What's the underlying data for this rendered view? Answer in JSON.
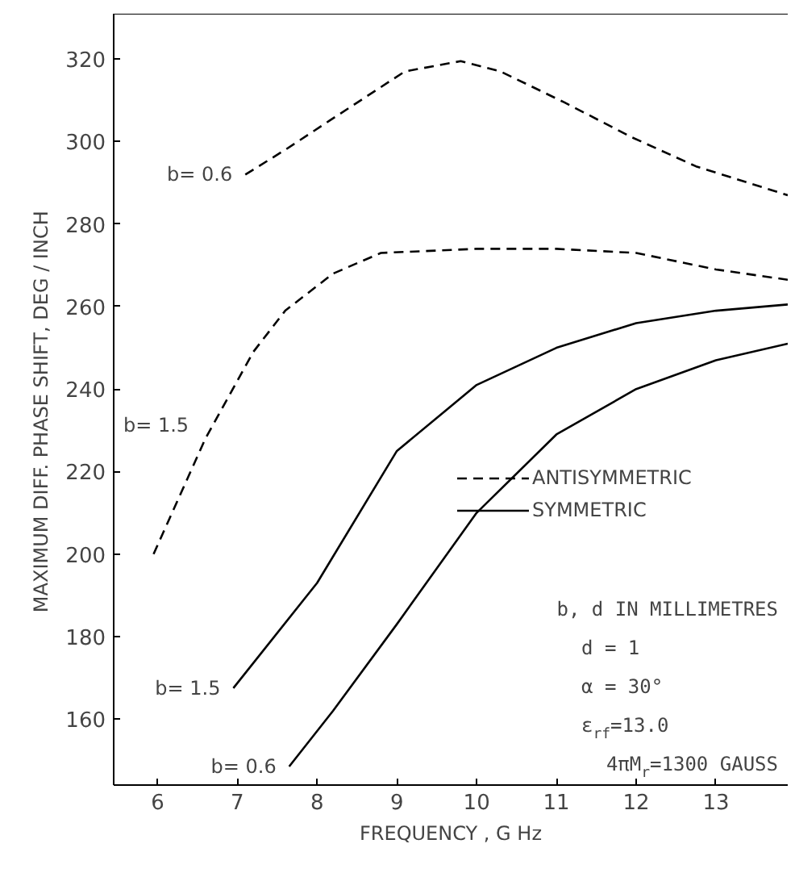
{
  "chart_data": {
    "type": "line",
    "xlabel": "FREQUENCY , G Hz",
    "ylabel": "MAXIMUM  DIFF.  PHASE  SHIFT,  DEG / INCH",
    "series": [
      {
        "name": "b= 0.6",
        "color": "#000000",
        "line_style": "dashed",
        "x": [
          7.1,
          7.6,
          8.15,
          9.1,
          9.8,
          10.3,
          11.1,
          11.95,
          12.75,
          13.9
        ],
        "values": [
          292,
          298,
          305,
          317,
          319.5,
          317,
          309.5,
          301,
          294,
          287
        ]
      },
      {
        "name": "b= 1.5",
        "color": "#000000",
        "line_style": "dashed",
        "x": [
          5.95,
          6.6,
          7.2,
          7.6,
          8.2,
          8.8,
          10.0,
          11.0,
          12.0,
          13.0,
          13.9
        ],
        "values": [
          200,
          228,
          249,
          259,
          268,
          273,
          274,
          274,
          273,
          269,
          266.5
        ]
      },
      {
        "name": "b= 1.5",
        "color": "#000000",
        "line_style": "solid",
        "x": [
          6.95,
          8.0,
          9.0,
          10.0,
          11.0,
          12.0,
          13.0,
          13.9
        ],
        "values": [
          167.5,
          193,
          225,
          241,
          250,
          256,
          259,
          260.5
        ]
      },
      {
        "name": "b= 0.6",
        "color": "#000000",
        "line_style": "solid",
        "x": [
          7.65,
          8.2,
          9.0,
          10.0,
          11.0,
          12.0,
          13.0,
          13.9
        ],
        "values": [
          148.5,
          162,
          183,
          210,
          229,
          240,
          247,
          251
        ]
      }
    ],
    "annotations": [
      "ANTISYMMETRIC",
      "SYMMETRIC",
      "b, d IN MILLIMETRES",
      "d = 1",
      "α = 30°",
      "ε$_{rf}$=13.0",
      "4πM$_{r}$=1300 GAUSS"
    ],
    "xlim": [
      5.45,
      13.9
    ],
    "ylim": [
      144,
      331
    ],
    "xticks": [
      6,
      7,
      8,
      9,
      10,
      11,
      12,
      13
    ],
    "yticks": [
      160,
      180,
      200,
      220,
      240,
      260,
      280,
      300,
      320
    ],
    "grid": false,
    "marker": "none"
  }
}
